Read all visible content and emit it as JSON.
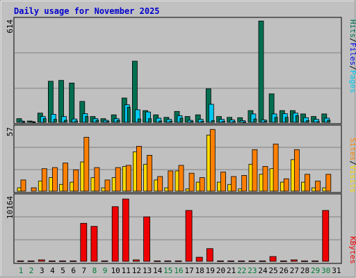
{
  "title": "Daily usage for November 2025",
  "colors": {
    "hits": "#006f51",
    "files": "#00c7ef",
    "pages": "#00c7ef",
    "visits": "#ffdb00",
    "sites": "#ff7f00",
    "kbytes": "#ef0000",
    "title": "#0000cc",
    "weekend": "#007a36",
    "weekday": "#000000"
  },
  "chart_data": [
    {
      "type": "bar",
      "categories": [
        "1",
        "2",
        "3",
        "4",
        "5",
        "6",
        "7",
        "8",
        "9",
        "10",
        "11",
        "12",
        "13",
        "14",
        "15",
        "16",
        "17",
        "18",
        "19",
        "20",
        "21",
        "22",
        "23",
        "24",
        "25",
        "26",
        "27",
        "28",
        "29",
        "30",
        "31"
      ],
      "ylabel": "614",
      "ylim": [
        0,
        614
      ],
      "legend": [
        "Hits",
        "Files",
        "Pages"
      ],
      "legend_separator": "/",
      "series": [
        {
          "name": "Hits",
          "values": [
            22,
            8,
            55,
            245,
            250,
            235,
            125,
            35,
            22,
            45,
            145,
            365,
            70,
            45,
            30,
            65,
            35,
            45,
            200,
            35,
            30,
            28,
            70,
            605,
            170,
            70,
            70,
            50,
            35,
            50,
            0
          ]
        },
        {
          "name": "Files",
          "values": [
            8,
            4,
            35,
            48,
            35,
            20,
            52,
            22,
            12,
            22,
            105,
            75,
            62,
            25,
            18,
            40,
            12,
            18,
            108,
            18,
            14,
            10,
            50,
            15,
            50,
            52,
            55,
            28,
            18,
            25,
            0
          ]
        },
        {
          "name": "Pages",
          "values": [
            3,
            2,
            22,
            18,
            12,
            8,
            35,
            12,
            5,
            12,
            90,
            20,
            22,
            8,
            6,
            25,
            5,
            6,
            10,
            6,
            4,
            3,
            20,
            8,
            30,
            30,
            40,
            10,
            4,
            12,
            0
          ]
        }
      ]
    },
    {
      "type": "bar",
      "categories": [
        "1",
        "2",
        "3",
        "4",
        "5",
        "6",
        "7",
        "8",
        "9",
        "10",
        "11",
        "12",
        "13",
        "14",
        "15",
        "16",
        "17",
        "18",
        "19",
        "20",
        "21",
        "22",
        "23",
        "24",
        "25",
        "26",
        "27",
        "28",
        "29",
        "30",
        "31"
      ],
      "ylabel": "57",
      "ylim": [
        0,
        57
      ],
      "legend": [
        "Visits",
        "Sites"
      ],
      "legend_separator": "/",
      "series": [
        {
          "name": "Visits",
          "values": [
            3,
            0,
            9,
            12,
            6,
            8,
            26,
            12,
            3,
            12,
            22,
            35,
            24,
            10,
            3,
            18,
            2,
            8,
            50,
            8,
            6,
            2,
            24,
            15,
            20,
            8,
            28,
            8,
            3,
            3,
            0
          ]
        },
        {
          "name": "Sites",
          "values": [
            10,
            3,
            20,
            21,
            25,
            19,
            48,
            21,
            10,
            21,
            23,
            40,
            32,
            13,
            18,
            23,
            16,
            12,
            55,
            17,
            13,
            14,
            37,
            22,
            42,
            11,
            37,
            15,
            9,
            15,
            0
          ]
        }
      ]
    },
    {
      "type": "bar",
      "categories": [
        "1",
        "2",
        "3",
        "4",
        "5",
        "6",
        "7",
        "8",
        "9",
        "10",
        "11",
        "12",
        "13",
        "14",
        "15",
        "16",
        "17",
        "18",
        "19",
        "20",
        "21",
        "22",
        "23",
        "24",
        "25",
        "26",
        "27",
        "28",
        "29",
        "30",
        "31"
      ],
      "ylabel": "10164",
      "ylim": [
        0,
        10164
      ],
      "legend": [
        "KBytes"
      ],
      "series": [
        {
          "name": "KBytes",
          "values": [
            80,
            80,
            230,
            80,
            80,
            80,
            5980,
            5500,
            80,
            8600,
            9800,
            230,
            7000,
            80,
            80,
            80,
            8000,
            650,
            2000,
            80,
            80,
            80,
            80,
            80,
            750,
            80,
            230,
            80,
            80,
            8000,
            0
          ]
        }
      ]
    }
  ],
  "day_types": [
    "weekend",
    "weekend",
    "weekday",
    "weekday",
    "weekday",
    "weekday",
    "weekday",
    "weekend",
    "weekend",
    "weekday",
    "weekday",
    "weekday",
    "weekday",
    "weekday",
    "weekend",
    "weekend",
    "weekday",
    "weekday",
    "weekday",
    "weekday",
    "weekday",
    "weekend",
    "weekend",
    "weekday",
    "weekday",
    "weekday",
    "weekday",
    "weekday",
    "weekend",
    "weekend",
    "weekday"
  ]
}
